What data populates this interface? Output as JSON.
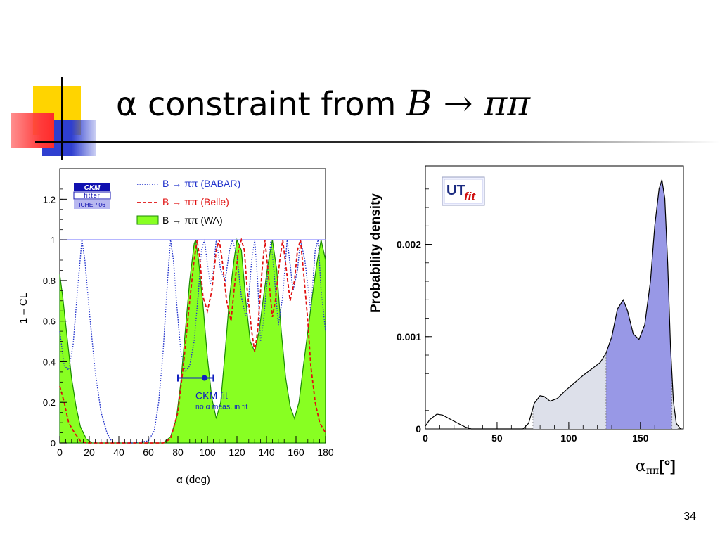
{
  "slide": {
    "title_text": "α constraint from ",
    "title_math": "B → ππ",
    "page_number": "34",
    "colors": {
      "yellow": "#ffd400",
      "red": "#ff3b3b",
      "blue": "#2f3fd0"
    }
  },
  "chart_data": [
    {
      "type": "line",
      "ylabel": "1 – CL",
      "xlabel": "α     (deg)",
      "xlim": [
        0,
        180
      ],
      "ylim": [
        0,
        1.35
      ],
      "x_ticks": [
        0,
        20,
        40,
        60,
        80,
        100,
        120,
        140,
        160,
        180
      ],
      "y_ticks": [
        0,
        0.2,
        0.4,
        0.6,
        0.8,
        1,
        1.2
      ],
      "y_tick_labels": [
        "0",
        "0.2",
        "0.4",
        "0.6",
        "0.8",
        "1",
        "1.2"
      ],
      "logo": {
        "line1": "CKM",
        "line2": "fitter",
        "line3": "ICHEP 06"
      },
      "legend": [
        {
          "label": "B → ππ (BABAR)",
          "style": "dotted",
          "color": "#2233cc"
        },
        {
          "label": "B → ππ (Belle)",
          "style": "dashed",
          "color": "#e01010"
        },
        {
          "label": "B → ππ (WA)",
          "style": "fill",
          "color": "#88ff22"
        }
      ],
      "series": [
        {
          "name": "B → ππ (BABAR)",
          "color": "#2233cc",
          "points": [
            [
              0,
              0.55
            ],
            [
              3,
              0.38
            ],
            [
              6,
              0.36
            ],
            [
              9,
              0.48
            ],
            [
              12,
              0.75
            ],
            [
              15,
              1
            ],
            [
              17,
              0.9
            ],
            [
              20,
              0.65
            ],
            [
              24,
              0.35
            ],
            [
              28,
              0.15
            ],
            [
              32,
              0.05
            ],
            [
              35,
              0.01
            ],
            [
              40,
              0
            ],
            [
              50,
              0
            ],
            [
              60,
              0.01
            ],
            [
              64,
              0.06
            ],
            [
              67,
              0.2
            ],
            [
              70,
              0.45
            ],
            [
              73,
              0.8
            ],
            [
              75,
              1
            ],
            [
              77,
              0.9
            ],
            [
              79,
              0.7
            ],
            [
              82,
              0.45
            ],
            [
              85,
              0.35
            ],
            [
              88,
              0.38
            ],
            [
              91,
              0.5
            ],
            [
              94,
              0.75
            ],
            [
              96,
              0.95
            ],
            [
              98,
              1
            ],
            [
              100,
              0.88
            ],
            [
              102,
              0.78
            ],
            [
              104,
              0.85
            ],
            [
              106,
              1
            ],
            [
              109,
              0.85
            ],
            [
              112,
              0.8
            ],
            [
              115,
              0.95
            ],
            [
              117,
              1
            ],
            [
              120,
              0.92
            ],
            [
              123,
              0.72
            ],
            [
              126,
              0.62
            ],
            [
              128,
              0.72
            ],
            [
              130,
              0.9
            ],
            [
              132,
              1
            ],
            [
              134,
              0.8
            ],
            [
              136,
              0.5
            ],
            [
              138,
              0.6
            ],
            [
              141,
              0.85
            ],
            [
              143,
              1
            ],
            [
              145,
              0.85
            ],
            [
              148,
              0.58
            ],
            [
              151,
              0.72
            ],
            [
              154,
              1
            ],
            [
              156,
              0.88
            ],
            [
              158,
              0.75
            ],
            [
              161,
              0.85
            ],
            [
              163,
              1
            ],
            [
              166,
              0.9
            ],
            [
              170,
              0.65
            ],
            [
              173,
              0.95
            ],
            [
              175,
              1
            ],
            [
              177,
              0.75
            ],
            [
              180,
              0.55
            ]
          ]
        },
        {
          "name": "B → ππ (Belle)",
          "color": "#e01010",
          "points": [
            [
              0,
              0.28
            ],
            [
              3,
              0.2
            ],
            [
              6,
              0.1
            ],
            [
              10,
              0.05
            ],
            [
              14,
              0.01
            ],
            [
              18,
              0
            ],
            [
              70,
              0
            ],
            [
              75,
              0.02
            ],
            [
              80,
              0.15
            ],
            [
              84,
              0.4
            ],
            [
              88,
              0.7
            ],
            [
              91,
              0.9
            ],
            [
              93,
              1
            ],
            [
              95,
              0.9
            ],
            [
              97,
              0.72
            ],
            [
              100,
              0.65
            ],
            [
              103,
              0.75
            ],
            [
              106,
              0.95
            ],
            [
              108,
              1
            ],
            [
              110,
              0.9
            ],
            [
              113,
              0.7
            ],
            [
              116,
              0.6
            ],
            [
              118,
              0.75
            ],
            [
              121,
              0.95
            ],
            [
              123,
              1
            ],
            [
              125,
              0.95
            ],
            [
              127,
              0.75
            ],
            [
              130,
              0.55
            ],
            [
              132,
              0.45
            ],
            [
              134,
              0.55
            ],
            [
              137,
              0.85
            ],
            [
              139,
              1
            ],
            [
              141,
              0.85
            ],
            [
              144,
              0.62
            ],
            [
              146,
              0.7
            ],
            [
              149,
              0.9
            ],
            [
              151,
              1
            ],
            [
              153,
              0.88
            ],
            [
              156,
              0.7
            ],
            [
              159,
              0.8
            ],
            [
              161,
              0.95
            ],
            [
              163,
              1
            ],
            [
              165,
              0.85
            ],
            [
              168,
              0.6
            ],
            [
              170,
              0.38
            ],
            [
              173,
              0.2
            ],
            [
              176,
              0.1
            ],
            [
              180,
              0.05
            ]
          ]
        },
        {
          "name": "B → ππ (WA)",
          "color": "#88ff22",
          "points": [
            [
              0,
              0.83
            ],
            [
              2,
              0.72
            ],
            [
              5,
              0.52
            ],
            [
              8,
              0.32
            ],
            [
              11,
              0.18
            ],
            [
              14,
              0.08
            ],
            [
              18,
              0.02
            ],
            [
              22,
              0
            ],
            [
              70,
              0
            ],
            [
              75,
              0.03
            ],
            [
              79,
              0.12
            ],
            [
              82,
              0.3
            ],
            [
              85,
              0.55
            ],
            [
              88,
              0.8
            ],
            [
              91,
              0.98
            ],
            [
              92,
              1
            ],
            [
              94,
              0.9
            ],
            [
              97,
              0.68
            ],
            [
              100,
              0.42
            ],
            [
              103,
              0.22
            ],
            [
              106,
              0.12
            ],
            [
              109,
              0.2
            ],
            [
              112,
              0.45
            ],
            [
              115,
              0.72
            ],
            [
              118,
              0.9
            ],
            [
              120,
              1
            ],
            [
              123,
              0.95
            ],
            [
              126,
              0.7
            ],
            [
              129,
              0.5
            ],
            [
              132,
              0.45
            ],
            [
              135,
              0.55
            ],
            [
              138,
              0.72
            ],
            [
              141,
              0.88
            ],
            [
              144,
              1
            ],
            [
              147,
              0.85
            ],
            [
              150,
              0.55
            ],
            [
              153,
              0.32
            ],
            [
              156,
              0.18
            ],
            [
              159,
              0.12
            ],
            [
              162,
              0.2
            ],
            [
              165,
              0.38
            ],
            [
              168,
              0.55
            ],
            [
              171,
              0.72
            ],
            [
              174,
              0.88
            ],
            [
              177,
              1
            ],
            [
              180,
              0.9
            ]
          ]
        }
      ],
      "annotation": {
        "label": "CKM fit",
        "sublabel": "no α meas. in fit",
        "center": 98,
        "low": 80,
        "high": 104,
        "y": 0.32,
        "color": "#1020c0"
      }
    },
    {
      "type": "area",
      "ylabel": "Probability density",
      "xlabel_main": "α",
      "xlabel_sub": "ππ",
      "xlabel_unit": "[°]",
      "xlim": [
        0,
        180
      ],
      "ylim": [
        0,
        0.00285
      ],
      "x_ticks": [
        0,
        50,
        100,
        150
      ],
      "y_ticks": [
        0,
        0.001,
        0.002
      ],
      "y_tick_labels": [
        "0",
        "0.001",
        "0.002"
      ],
      "logo": {
        "main": "UT",
        "sub": "fit"
      },
      "series": [
        {
          "name": "",
          "points": [
            [
              0,
              3e-05
            ],
            [
              3,
              0.0001
            ],
            [
              8,
              0.00016
            ],
            [
              12,
              0.00015
            ],
            [
              18,
              0.0001
            ],
            [
              24,
              5e-05
            ],
            [
              28,
              2e-05
            ],
            [
              32,
              0
            ],
            [
              68,
              0
            ],
            [
              72,
              6e-05
            ],
            [
              76,
              0.00028
            ],
            [
              80,
              0.00036
            ],
            [
              83,
              0.00035
            ],
            [
              87,
              0.0003
            ],
            [
              92,
              0.00033
            ],
            [
              98,
              0.00042
            ],
            [
              104,
              0.0005
            ],
            [
              110,
              0.00058
            ],
            [
              116,
              0.00065
            ],
            [
              122,
              0.00072
            ],
            [
              126,
              0.00082
            ],
            [
              130,
              0.001
            ],
            [
              134,
              0.0013
            ],
            [
              138,
              0.0014
            ],
            [
              141,
              0.00128
            ],
            [
              145,
              0.00103
            ],
            [
              149,
              0.00097
            ],
            [
              153,
              0.00113
            ],
            [
              157,
              0.0016
            ],
            [
              160,
              0.0022
            ],
            [
              163,
              0.0026
            ],
            [
              165,
              0.0027
            ],
            [
              167,
              0.0025
            ],
            [
              169,
              0.0018
            ],
            [
              171,
              0.0009
            ],
            [
              173,
              0.0003
            ],
            [
              175,
              6e-05
            ],
            [
              178,
              0
            ]
          ]
        }
      ],
      "bands": [
        {
          "from": 75,
          "to": 126,
          "color": "#dde0ea"
        },
        {
          "from": 126,
          "to": 172,
          "color": "#9898e6"
        },
        {
          "from": 172,
          "to": 176,
          "color": "#dde0ea"
        }
      ]
    }
  ]
}
